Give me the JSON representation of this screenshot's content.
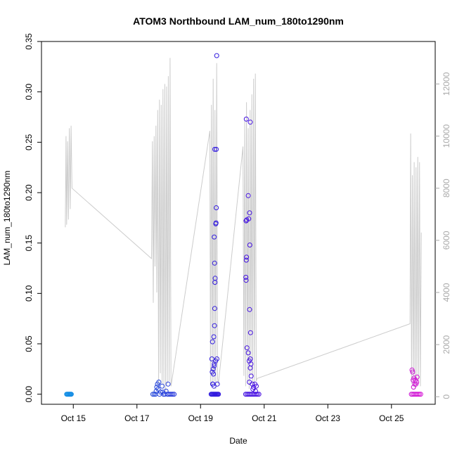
{
  "chart_data": {
    "type": "scatter",
    "title": "ATOM3 Northbound LAM_num_180to1290nm",
    "xlabel": "Date",
    "ylabel": "LAM_num_180to1290nm",
    "x_axis": {
      "type": "date",
      "range": [
        "2016-10-14T00:00",
        "2016-10-26T09:00"
      ],
      "tick_values": [
        "2016-10-15",
        "2016-10-17",
        "2016-10-19",
        "2016-10-21",
        "2016-10-23",
        "2016-10-25"
      ],
      "tick_labels": [
        "Oct 15",
        "Oct 17",
        "Oct 19",
        "Oct 21",
        "Oct 23",
        "Oct 25"
      ]
    },
    "y_axis_left": {
      "ylim": [
        -0.01,
        0.35
      ],
      "ticks": [
        0.0,
        0.05,
        0.1,
        0.15,
        0.2,
        0.25,
        0.3,
        0.35
      ],
      "tick_labels": [
        "0.00",
        "0.05",
        "0.10",
        "0.15",
        "0.20",
        "0.25",
        "0.30",
        "0.35"
      ]
    },
    "y_axis_right": {
      "ylim": [
        -290,
        13630
      ],
      "ticks": [
        0,
        2000,
        4000,
        6000,
        8000,
        10000,
        12000
      ],
      "tick_labels": [
        "0",
        "2000",
        "4000",
        "6000",
        "8000",
        "10000",
        "12000"
      ],
      "color": "#aaaaaa"
    },
    "grid": false,
    "legend": "none",
    "series": [
      {
        "type": "scatter",
        "axis": "left",
        "marker": "open-circle",
        "color_gradient": [
          "#0ea5e9",
          "#1d4ed8",
          "#3b0fe0",
          "#8b1ee6",
          "#e10fd0"
        ],
        "points": [
          [
            "2016-10-14T19:00",
            0
          ],
          [
            "2016-10-14T19:30",
            0
          ],
          [
            "2016-10-14T20:00",
            0
          ],
          [
            "2016-10-14T20:30",
            0
          ],
          [
            "2016-10-14T21:00",
            0
          ],
          [
            "2016-10-14T21:30",
            0
          ],
          [
            "2016-10-14T22:00",
            0
          ],
          [
            "2016-10-14T22:30",
            0
          ],
          [
            "2016-10-17T12:00",
            0
          ],
          [
            "2016-10-17T13:00",
            0
          ],
          [
            "2016-10-17T14:00",
            0
          ],
          [
            "2016-10-17T14:30",
            0.003
          ],
          [
            "2016-10-17T15:00",
            0.007
          ],
          [
            "2016-10-17T15:30",
            0.01
          ],
          [
            "2016-10-17T16:00",
            0.005
          ],
          [
            "2016-10-17T16:30",
            0.012
          ],
          [
            "2016-10-17T17:00",
            0
          ],
          [
            "2016-10-17T18:00",
            0.002
          ],
          [
            "2016-10-17T19:00",
            0.008
          ],
          [
            "2016-10-17T20:00",
            0
          ],
          [
            "2016-10-17T21:00",
            0
          ],
          [
            "2016-10-17T22:00",
            0.003
          ],
          [
            "2016-10-17T23:00",
            0
          ],
          [
            "2016-10-18T00:00",
            0
          ],
          [
            "2016-10-18T01:00",
            0
          ],
          [
            "2016-10-18T02:00",
            0
          ],
          [
            "2016-10-18T03:00",
            0
          ],
          [
            "2016-10-18T04:00",
            0
          ],
          [
            "2016-10-17T23:30",
            0.01
          ],
          [
            "2016-10-17T19:30",
            0.002
          ],
          [
            "2016-10-19T08:00",
            0
          ],
          [
            "2016-10-19T08:30",
            0
          ],
          [
            "2016-10-19T09:00",
            0
          ],
          [
            "2016-10-19T09:30",
            0
          ],
          [
            "2016-10-19T10:00",
            0
          ],
          [
            "2016-10-19T10:30",
            0
          ],
          [
            "2016-10-19T11:00",
            0
          ],
          [
            "2016-10-19T11:30",
            0
          ],
          [
            "2016-10-19T12:00",
            0
          ],
          [
            "2016-10-19T12:30",
            0
          ],
          [
            "2016-10-19T13:00",
            0
          ],
          [
            "2016-10-19T13:30",
            0
          ],
          [
            "2016-10-19T08:30",
            0.035
          ],
          [
            "2016-10-19T09:00",
            0.052
          ],
          [
            "2016-10-19T09:30",
            0.025
          ],
          [
            "2016-10-19T09:45",
            0.02
          ],
          [
            "2016-10-19T10:00",
            0.057
          ],
          [
            "2016-10-19T10:15",
            0.028
          ],
          [
            "2016-10-19T10:20",
            0.03
          ],
          [
            "2016-10-19T10:30",
            0.068
          ],
          [
            "2016-10-19T10:40",
            0.085
          ],
          [
            "2016-10-19T10:50",
            0.111
          ],
          [
            "2016-10-19T11:00",
            0.115
          ],
          [
            "2016-10-19T10:35",
            0.13
          ],
          [
            "2016-10-19T10:20",
            0.156
          ],
          [
            "2016-10-19T11:30",
            0.169
          ],
          [
            "2016-10-19T11:40",
            0.17
          ],
          [
            "2016-10-19T11:50",
            0.185
          ],
          [
            "2016-10-19T10:40",
            0.243
          ],
          [
            "2016-10-19T11:50",
            0.243
          ],
          [
            "2016-10-19T12:10",
            0.336
          ],
          [
            "2016-10-19T12:20",
            0.035
          ],
          [
            "2016-10-19T11:20",
            0.033
          ],
          [
            "2016-10-19T09:20",
            0.01
          ],
          [
            "2016-10-19T08:50",
            0.022
          ],
          [
            "2016-10-19T12:40",
            0.01
          ],
          [
            "2016-10-19T09:05",
            0.01
          ],
          [
            "2016-10-19T10:05",
            0.008
          ],
          [
            "2016-10-20T10:00",
            0
          ],
          [
            "2016-10-20T11:00",
            0
          ],
          [
            "2016-10-20T12:00",
            0
          ],
          [
            "2016-10-20T13:00",
            0
          ],
          [
            "2016-10-20T14:00",
            0
          ],
          [
            "2016-10-20T15:00",
            0
          ],
          [
            "2016-10-20T16:00",
            0
          ],
          [
            "2016-10-20T17:00",
            0
          ],
          [
            "2016-10-20T18:00",
            0
          ],
          [
            "2016-10-20T19:00",
            0
          ],
          [
            "2016-10-20T20:00",
            0
          ],
          [
            "2016-10-20T10:30",
            0.273
          ],
          [
            "2016-10-20T13:30",
            0.27
          ],
          [
            "2016-10-20T12:00",
            0.197
          ],
          [
            "2016-10-20T13:00",
            0.18
          ],
          [
            "2016-10-20T10:20",
            0.172
          ],
          [
            "2016-10-20T10:50",
            0.173
          ],
          [
            "2016-10-20T12:20",
            0.174
          ],
          [
            "2016-10-20T13:10",
            0.148
          ],
          [
            "2016-10-20T10:40",
            0.136
          ],
          [
            "2016-10-20T10:30",
            0.133
          ],
          [
            "2016-10-20T10:10",
            0.116
          ],
          [
            "2016-10-20T10:20",
            0.113
          ],
          [
            "2016-10-20T13:00",
            0.084
          ],
          [
            "2016-10-20T13:40",
            0.061
          ],
          [
            "2016-10-20T11:00",
            0.046
          ],
          [
            "2016-10-20T12:00",
            0.041
          ],
          [
            "2016-10-20T13:30",
            0.035
          ],
          [
            "2016-10-20T12:40",
            0.033
          ],
          [
            "2016-10-20T14:00",
            0.03
          ],
          [
            "2016-10-20T13:30",
            0.026
          ],
          [
            "2016-10-20T14:10",
            0.018
          ],
          [
            "2016-10-20T12:50",
            0.012
          ],
          [
            "2016-10-20T15:00",
            0.01
          ],
          [
            "2016-10-20T17:00",
            0.01
          ],
          [
            "2016-10-20T16:00",
            0.007
          ],
          [
            "2016-10-20T18:00",
            0.008
          ],
          [
            "2016-10-20T15:30",
            0.005
          ],
          [
            "2016-10-20T17:30",
            0.003
          ],
          [
            "2016-10-25T15:00",
            0
          ],
          [
            "2016-10-25T16:00",
            0
          ],
          [
            "2016-10-25T17:00",
            0
          ],
          [
            "2016-10-25T18:00",
            0
          ],
          [
            "2016-10-25T19:00",
            0
          ],
          [
            "2016-10-25T20:00",
            0
          ],
          [
            "2016-10-25T21:00",
            0
          ],
          [
            "2016-10-25T22:00",
            0
          ],
          [
            "2016-10-25T15:30",
            0.024
          ],
          [
            "2016-10-25T16:00",
            0.022
          ],
          [
            "2016-10-25T17:00",
            0.016
          ],
          [
            "2016-10-25T16:20",
            0.014
          ],
          [
            "2016-10-25T18:00",
            0.014
          ],
          [
            "2016-10-25T19:20",
            0.017
          ],
          [
            "2016-10-25T17:30",
            0.01
          ],
          [
            "2016-10-25T16:40",
            0.007
          ],
          [
            "2016-10-25T18:30",
            0.01
          ],
          [
            "2016-10-25T19:00",
            0.012
          ]
        ]
      },
      {
        "type": "line",
        "axis": "right",
        "color": "#cccccc",
        "points": [
          [
            "2016-10-14T18:00",
            6500
          ],
          [
            "2016-10-14T18:30",
            10000
          ],
          [
            "2016-10-14T19:00",
            6600
          ],
          [
            "2016-10-14T19:40",
            9800
          ],
          [
            "2016-10-14T20:20",
            6800
          ],
          [
            "2016-10-14T21:00",
            10300
          ],
          [
            "2016-10-14T21:40",
            7200
          ],
          [
            "2016-10-14T22:20",
            10400
          ],
          [
            "2016-10-14T23:00",
            8000
          ],
          [
            "2016-10-17T11:00",
            5300
          ],
          [
            "2016-10-17T11:40",
            9800
          ],
          [
            "2016-10-17T12:20",
            3600
          ],
          [
            "2016-10-17T13:00",
            10000
          ],
          [
            "2016-10-17T13:40",
            5000
          ],
          [
            "2016-10-17T14:20",
            10400
          ],
          [
            "2016-10-17T15:00",
            4000
          ],
          [
            "2016-10-17T15:40",
            11000
          ],
          [
            "2016-10-17T16:20",
            400
          ],
          [
            "2016-10-17T17:00",
            11400
          ],
          [
            "2016-10-17T17:40",
            900
          ],
          [
            "2016-10-17T18:20",
            11200
          ],
          [
            "2016-10-17T19:00",
            500
          ],
          [
            "2016-10-17T19:40",
            11800
          ],
          [
            "2016-10-17T20:20",
            300
          ],
          [
            "2016-10-17T21:00",
            12000
          ],
          [
            "2016-10-17T21:40",
            200
          ],
          [
            "2016-10-17T22:20",
            11900
          ],
          [
            "2016-10-17T23:00",
            500
          ],
          [
            "2016-10-17T23:40",
            12300
          ],
          [
            "2016-10-18T00:20",
            600
          ],
          [
            "2016-10-18T01:00",
            13000
          ],
          [
            "2016-10-18T01:40",
            400
          ],
          [
            "2016-10-19T07:00",
            10200
          ],
          [
            "2016-10-19T07:30",
            500
          ],
          [
            "2016-10-19T08:10",
            11200
          ],
          [
            "2016-10-19T08:50",
            400
          ],
          [
            "2016-10-19T09:30",
            12200
          ],
          [
            "2016-10-19T10:10",
            600
          ],
          [
            "2016-10-19T10:50",
            11000
          ],
          [
            "2016-10-19T11:30",
            300
          ],
          [
            "2016-10-19T12:10",
            12800
          ],
          [
            "2016-10-19T12:50",
            700
          ],
          [
            "2016-10-19T13:30",
            500
          ],
          [
            "2016-10-20T08:00",
            9600
          ],
          [
            "2016-10-20T08:40",
            800
          ],
          [
            "2016-10-20T09:20",
            10600
          ],
          [
            "2016-10-20T10:00",
            400
          ],
          [
            "2016-10-20T10:40",
            11300
          ],
          [
            "2016-10-20T11:20",
            600
          ],
          [
            "2016-10-20T12:00",
            10300
          ],
          [
            "2016-10-20T12:40",
            300
          ],
          [
            "2016-10-20T13:20",
            11000
          ],
          [
            "2016-10-20T14:00",
            800
          ],
          [
            "2016-10-20T14:40",
            11600
          ],
          [
            "2016-10-20T15:20",
            400
          ],
          [
            "2016-10-20T16:00",
            12200
          ],
          [
            "2016-10-20T16:40",
            500
          ],
          [
            "2016-10-20T17:20",
            12400
          ],
          [
            "2016-10-20T18:00",
            600
          ],
          [
            "2016-10-20T18:40",
            700
          ],
          [
            "2016-10-25T14:00",
            2800
          ],
          [
            "2016-10-25T14:30",
            10100
          ],
          [
            "2016-10-25T15:10",
            500
          ],
          [
            "2016-10-25T15:50",
            8500
          ],
          [
            "2016-10-25T16:30",
            400
          ],
          [
            "2016-10-25T17:10",
            9000
          ],
          [
            "2016-10-25T17:50",
            300
          ],
          [
            "2016-10-25T18:30",
            8800
          ],
          [
            "2016-10-25T19:10",
            500
          ],
          [
            "2016-10-25T19:50",
            9200
          ],
          [
            "2016-10-25T20:30",
            600
          ],
          [
            "2016-10-25T21:10",
            9000
          ],
          [
            "2016-10-25T21:50",
            400
          ],
          [
            "2016-10-25T22:30",
            6300
          ]
        ]
      }
    ]
  }
}
